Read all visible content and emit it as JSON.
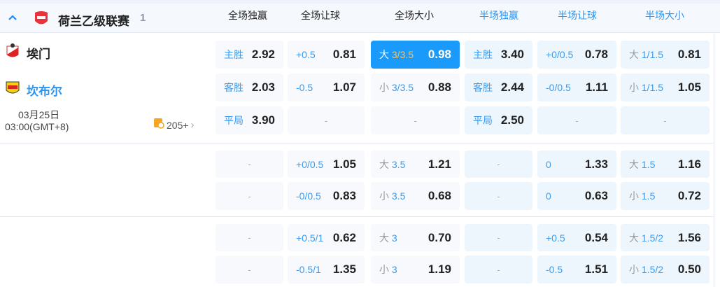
{
  "league": {
    "name": "荷兰乙级联赛",
    "count": "1"
  },
  "columns": [
    "全场独赢",
    "全场让球",
    "全场大小",
    "半场独赢",
    "半场让球",
    "半场大小"
  ],
  "match": {
    "home": "埃门",
    "away": "坎布尔",
    "date": "03月25日",
    "time": "03:00(GMT+8)",
    "markets": "205+"
  },
  "rows": [
    [
      {
        "l": "主胜",
        "v": "2.92"
      },
      {
        "l": "+0.5",
        "v": "0.81"
      },
      {
        "p": "大",
        "l": "3/3.5",
        "v": "0.98",
        "selected": true
      },
      {
        "l": "主胜",
        "v": "3.40"
      },
      {
        "l": "+0/0.5",
        "v": "0.78"
      },
      {
        "p": "大",
        "l": "1/1.5",
        "v": "0.81"
      }
    ],
    [
      {
        "l": "客胜",
        "v": "2.03"
      },
      {
        "l": "-0.5",
        "v": "1.07"
      },
      {
        "p": "小",
        "l": "3/3.5",
        "v": "0.88"
      },
      {
        "l": "客胜",
        "v": "2.44"
      },
      {
        "l": "-0/0.5",
        "v": "1.11"
      },
      {
        "p": "小",
        "l": "1/1.5",
        "v": "1.05"
      }
    ],
    [
      {
        "l": "平局",
        "v": "3.90"
      },
      {
        "d": "-"
      },
      {
        "d": "-"
      },
      {
        "l": "平局",
        "v": "2.50"
      },
      {
        "d": "-"
      },
      {
        "d": "-"
      }
    ],
    [
      {
        "d": "-"
      },
      {
        "l": "+0/0.5",
        "v": "1.05"
      },
      {
        "p": "大",
        "l": "3.5",
        "v": "1.21"
      },
      {
        "d": "-"
      },
      {
        "l": "0",
        "v": "1.33"
      },
      {
        "p": "大",
        "l": "1.5",
        "v": "1.16"
      }
    ],
    [
      {
        "d": "-"
      },
      {
        "l": "-0/0.5",
        "v": "0.83"
      },
      {
        "p": "小",
        "l": "3.5",
        "v": "0.68"
      },
      {
        "d": "-"
      },
      {
        "l": "0",
        "v": "0.63"
      },
      {
        "p": "小",
        "l": "1.5",
        "v": "0.72"
      }
    ],
    [
      {
        "d": "-"
      },
      {
        "l": "+0.5/1",
        "v": "0.62"
      },
      {
        "p": "大",
        "l": "3",
        "v": "0.70"
      },
      {
        "d": "-"
      },
      {
        "l": "+0.5",
        "v": "0.54"
      },
      {
        "p": "大",
        "l": "1.5/2",
        "v": "1.56"
      }
    ],
    [
      {
        "d": "-"
      },
      {
        "l": "-0.5/1",
        "v": "1.35"
      },
      {
        "p": "小",
        "l": "3",
        "v": "1.19"
      },
      {
        "d": "-"
      },
      {
        "l": "-0.5",
        "v": "1.51"
      },
      {
        "p": "小",
        "l": "1.5/2",
        "v": "0.50"
      }
    ]
  ],
  "colors": {
    "accent": "#1a9bfc",
    "selected_line": "#f5c15a"
  }
}
